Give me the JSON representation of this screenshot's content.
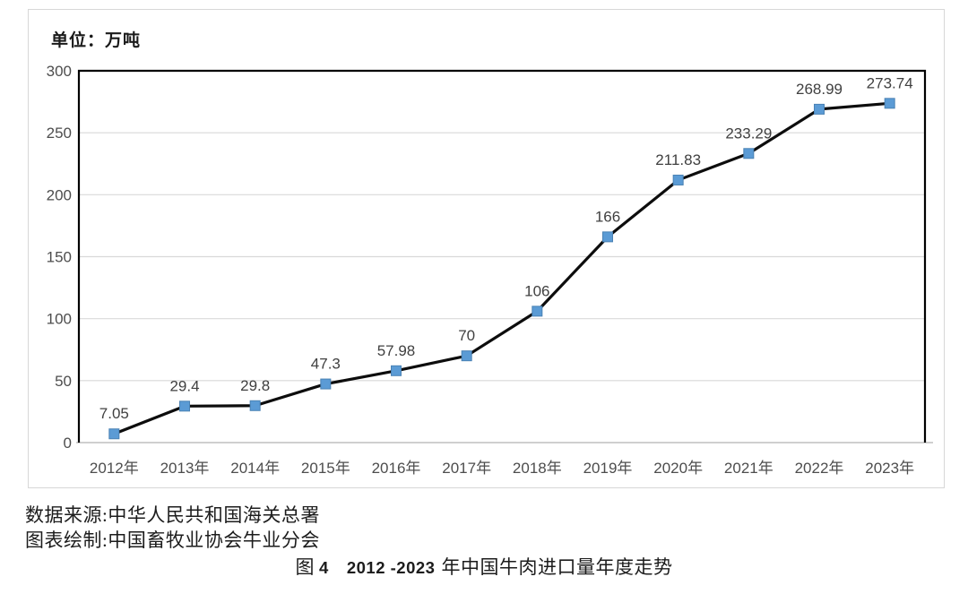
{
  "chart_data": {
    "type": "line",
    "unit_label": "单位：万吨",
    "categories": [
      "2012年",
      "2013年",
      "2014年",
      "2015年",
      "2016年",
      "2017年",
      "2018年",
      "2019年",
      "2020年",
      "2021年",
      "2022年",
      "2023年"
    ],
    "values": [
      7.05,
      29.4,
      29.8,
      47.3,
      57.98,
      70,
      106,
      166,
      211.83,
      233.29,
      268.99,
      273.74
    ],
    "point_labels": [
      "7.05",
      "29.4",
      "29.8",
      "47.3",
      "57.98",
      "70",
      "106",
      "166",
      "211.83",
      "233.29",
      "268.99",
      "273.74"
    ],
    "yticks": [
      0,
      50,
      100,
      150,
      200,
      250,
      300
    ],
    "ylim": [
      0,
      300
    ],
    "grid": true,
    "legend": "none",
    "colors": {
      "line": "#0d0d0d",
      "marker_fill": "#5b9bd5",
      "marker_edge": "#4a82b4",
      "gridline": "#d9d9d9",
      "zero_line": "#bfbfbf",
      "plot_border": "#000000",
      "frame_border": "#d7d7d7",
      "tick_text": "#4d4d4d",
      "label_text": "#404040"
    }
  },
  "footer": {
    "source_line1": "数据来源:中华人民共和国海关总署",
    "source_line2": "图表绘制:中国畜牧业协会牛业分会",
    "caption": {
      "fig": "图",
      "fig_num": "4",
      "years": "2012 -2023",
      "title": "年中国牛肉进口量年度走势"
    }
  }
}
